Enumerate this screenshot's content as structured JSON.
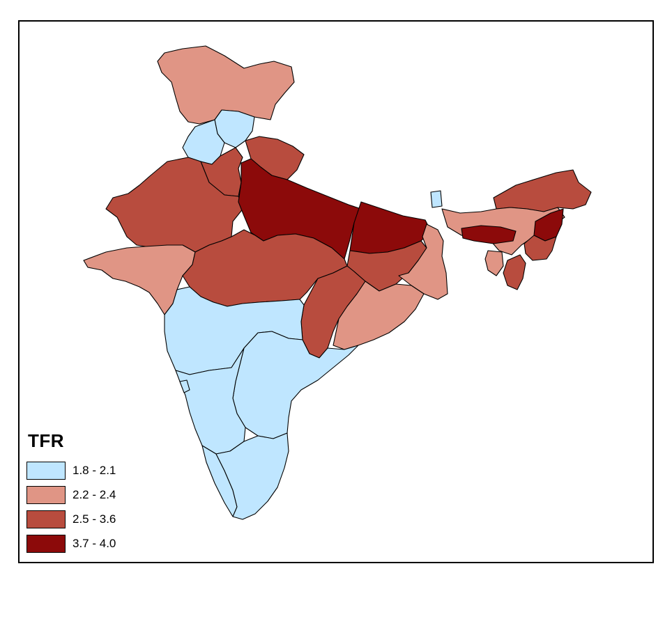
{
  "legend": {
    "title": "TFR",
    "classes": [
      {
        "label": "1.8 - 2.1",
        "color": "#bfe6ff"
      },
      {
        "label": "2.2 - 2.4",
        "color": "#e09585"
      },
      {
        "label": "2.5 - 3.6",
        "color": "#b84c3e"
      },
      {
        "label": "3.7 - 4.0",
        "color": "#8c0a0a"
      }
    ]
  },
  "regions": [
    {
      "id": "jammu-kashmir",
      "tfr_class": 1
    },
    {
      "id": "himachal-pradesh",
      "tfr_class": 0
    },
    {
      "id": "punjab",
      "tfr_class": 0
    },
    {
      "id": "uttarakhand",
      "tfr_class": 2
    },
    {
      "id": "haryana",
      "tfr_class": 2
    },
    {
      "id": "rajasthan",
      "tfr_class": 2
    },
    {
      "id": "uttar-pradesh",
      "tfr_class": 3
    },
    {
      "id": "bihar",
      "tfr_class": 3
    },
    {
      "id": "gujarat",
      "tfr_class": 1
    },
    {
      "id": "madhya-pradesh",
      "tfr_class": 2
    },
    {
      "id": "jharkhand",
      "tfr_class": 2
    },
    {
      "id": "west-bengal",
      "tfr_class": 1
    },
    {
      "id": "chhattisgarh",
      "tfr_class": 2
    },
    {
      "id": "odisha",
      "tfr_class": 1
    },
    {
      "id": "maharashtra",
      "tfr_class": 0
    },
    {
      "id": "andhra-pradesh",
      "tfr_class": 0
    },
    {
      "id": "karnataka",
      "tfr_class": 0
    },
    {
      "id": "goa",
      "tfr_class": 0
    },
    {
      "id": "kerala",
      "tfr_class": 0
    },
    {
      "id": "tamil-nadu",
      "tfr_class": 0
    },
    {
      "id": "sikkim",
      "tfr_class": 0
    },
    {
      "id": "arunachal-pradesh",
      "tfr_class": 2
    },
    {
      "id": "assam",
      "tfr_class": 1
    },
    {
      "id": "meghalaya",
      "tfr_class": 3
    },
    {
      "id": "nagaland",
      "tfr_class": 3
    },
    {
      "id": "manipur",
      "tfr_class": 2
    },
    {
      "id": "mizoram",
      "tfr_class": 2
    },
    {
      "id": "tripura",
      "tfr_class": 1
    }
  ]
}
